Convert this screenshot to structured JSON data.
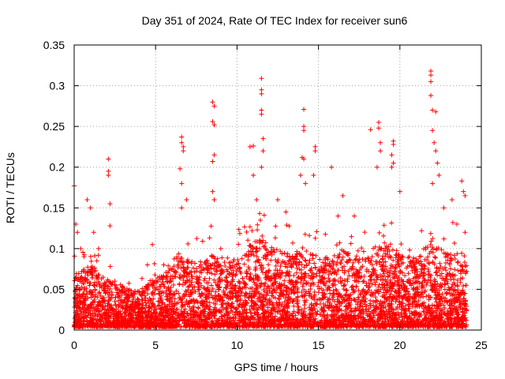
{
  "chart_data": {
    "type": "scatter",
    "title": "Day 351 of 2024, Rate Of TEC Index for receiver sun6",
    "xlabel": "GPS time / hours",
    "ylabel": "ROTI / TECUs",
    "xlim": [
      0,
      25
    ],
    "ylim": [
      0,
      0.35
    ],
    "x_ticks": [
      "0",
      "5",
      "10",
      "15",
      "20",
      "25"
    ],
    "y_ticks": [
      "0",
      "0.05",
      "0.1",
      "0.15",
      "0.2",
      "0.25",
      "0.3",
      "0.35"
    ],
    "grid": true,
    "marker": "+",
    "series": [
      {
        "color": "#ff0000",
        "points": [
          [
            0.0,
            0.177
          ],
          [
            0.1,
            0.13
          ],
          [
            0.2,
            0.12
          ],
          [
            0.4,
            0.1
          ],
          [
            0.6,
            0.09
          ],
          [
            0.8,
            0.16
          ],
          [
            1.0,
            0.15
          ],
          [
            1.2,
            0.12
          ],
          [
            1.5,
            0.1
          ],
          [
            2.1,
            0.21
          ],
          [
            2.1,
            0.195
          ],
          [
            2.1,
            0.19
          ],
          [
            2.2,
            0.155
          ],
          [
            2.2,
            0.128
          ],
          [
            2.5,
            0.06
          ],
          [
            3.0,
            0.05
          ],
          [
            4.5,
            0.08
          ],
          [
            4.8,
            0.105
          ],
          [
            5.5,
            0.08
          ],
          [
            6.6,
            0.237
          ],
          [
            6.6,
            0.23
          ],
          [
            6.7,
            0.225
          ],
          [
            6.7,
            0.22
          ],
          [
            6.5,
            0.198
          ],
          [
            6.6,
            0.18
          ],
          [
            6.9,
            0.16
          ],
          [
            6.6,
            0.15
          ],
          [
            8.5,
            0.28
          ],
          [
            8.6,
            0.275
          ],
          [
            8.5,
            0.256
          ],
          [
            8.6,
            0.252
          ],
          [
            8.6,
            0.215
          ],
          [
            8.5,
            0.207
          ],
          [
            8.5,
            0.17
          ],
          [
            8.6,
            0.16
          ],
          [
            9.0,
            0.1
          ],
          [
            10.8,
            0.225
          ],
          [
            11.0,
            0.226
          ],
          [
            11.5,
            0.309
          ],
          [
            11.5,
            0.295
          ],
          [
            11.5,
            0.29
          ],
          [
            11.5,
            0.27
          ],
          [
            11.5,
            0.265
          ],
          [
            11.6,
            0.235
          ],
          [
            11.6,
            0.22
          ],
          [
            11.5,
            0.2
          ],
          [
            11.0,
            0.19
          ],
          [
            11.2,
            0.16
          ],
          [
            12.5,
            0.16
          ],
          [
            13.0,
            0.145
          ],
          [
            14.1,
            0.271
          ],
          [
            14.1,
            0.25
          ],
          [
            14.1,
            0.245
          ],
          [
            14.0,
            0.212
          ],
          [
            14.1,
            0.21
          ],
          [
            13.9,
            0.19
          ],
          [
            14.2,
            0.18
          ],
          [
            14.8,
            0.225
          ],
          [
            14.8,
            0.22
          ],
          [
            14.7,
            0.19
          ],
          [
            15.8,
            0.2
          ],
          [
            16.5,
            0.165
          ],
          [
            16.2,
            0.14
          ],
          [
            17.2,
            0.14
          ],
          [
            18.2,
            0.246
          ],
          [
            18.7,
            0.255
          ],
          [
            18.7,
            0.248
          ],
          [
            18.8,
            0.23
          ],
          [
            18.8,
            0.22
          ],
          [
            18.6,
            0.2
          ],
          [
            19.6,
            0.232
          ],
          [
            19.6,
            0.228
          ],
          [
            19.5,
            0.215
          ],
          [
            19.6,
            0.205
          ],
          [
            19.5,
            0.2
          ],
          [
            20.0,
            0.17
          ],
          [
            21.9,
            0.318
          ],
          [
            21.9,
            0.313
          ],
          [
            21.9,
            0.305
          ],
          [
            21.9,
            0.288
          ],
          [
            22.0,
            0.27
          ],
          [
            22.2,
            0.268
          ],
          [
            22.0,
            0.245
          ],
          [
            22.1,
            0.23
          ],
          [
            22.2,
            0.22
          ],
          [
            22.3,
            0.205
          ],
          [
            22.4,
            0.19
          ],
          [
            22.0,
            0.18
          ],
          [
            22.7,
            0.15
          ],
          [
            23.2,
            0.16
          ],
          [
            23.8,
            0.183
          ],
          [
            23.9,
            0.17
          ],
          [
            24.0,
            0.165
          ],
          [
            24.0,
            0.12
          ],
          [
            23.5,
            0.13
          ]
        ]
      }
    ],
    "density_profile": [
      [
        0.0,
        0.062
      ],
      [
        0.5,
        0.07
      ],
      [
        1.0,
        0.075
      ],
      [
        1.5,
        0.07
      ],
      [
        2.0,
        0.06
      ],
      [
        2.5,
        0.055
      ],
      [
        3.0,
        0.05
      ],
      [
        3.5,
        0.045
      ],
      [
        4.0,
        0.045
      ],
      [
        4.5,
        0.055
      ],
      [
        5.0,
        0.06
      ],
      [
        5.5,
        0.065
      ],
      [
        6.0,
        0.07
      ],
      [
        6.5,
        0.085
      ],
      [
        7.0,
        0.085
      ],
      [
        7.5,
        0.08
      ],
      [
        8.0,
        0.08
      ],
      [
        8.5,
        0.09
      ],
      [
        9.0,
        0.08
      ],
      [
        9.5,
        0.08
      ],
      [
        10.0,
        0.085
      ],
      [
        10.5,
        0.095
      ],
      [
        11.0,
        0.105
      ],
      [
        11.5,
        0.11
      ],
      [
        12.0,
        0.1
      ],
      [
        12.5,
        0.095
      ],
      [
        13.0,
        0.09
      ],
      [
        13.5,
        0.09
      ],
      [
        14.0,
        0.1
      ],
      [
        14.5,
        0.1
      ],
      [
        15.0,
        0.09
      ],
      [
        15.5,
        0.085
      ],
      [
        16.0,
        0.09
      ],
      [
        16.5,
        0.095
      ],
      [
        17.0,
        0.09
      ],
      [
        17.5,
        0.085
      ],
      [
        18.0,
        0.09
      ],
      [
        18.5,
        0.1
      ],
      [
        19.0,
        0.11
      ],
      [
        19.5,
        0.1
      ],
      [
        20.0,
        0.09
      ],
      [
        20.5,
        0.085
      ],
      [
        21.0,
        0.085
      ],
      [
        21.5,
        0.1
      ],
      [
        22.0,
        0.11
      ],
      [
        22.5,
        0.1
      ],
      [
        23.0,
        0.09
      ],
      [
        23.5,
        0.09
      ],
      [
        24.0,
        0.085
      ]
    ]
  }
}
